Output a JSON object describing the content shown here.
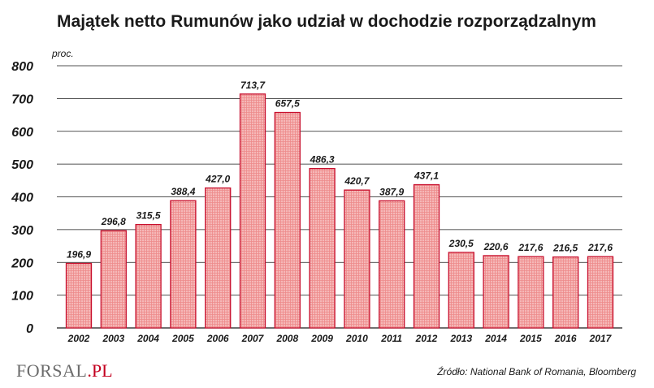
{
  "logo": {
    "brand_main": "FORSAL",
    "brand_suffix": ".PL"
  },
  "source": "Źródło: National Bank of Romania, Bloomberg",
  "colors": {
    "bar_fill": "#f5b8b8",
    "bar_stroke": "#c8102e",
    "bar_pattern": "#ee8a8a",
    "grid": "#1a1a1a",
    "text": "#1a1a1a",
    "logo_gray": "#6b6b6b",
    "logo_red": "#c3001f"
  },
  "chart_data": {
    "type": "bar",
    "title": "Majątek netto Rumunów  jako udział w dochodzie rozporządzalnym",
    "unit_label": "proc.",
    "xlabel": "",
    "ylabel": "",
    "ylim": [
      0,
      800
    ],
    "yticks": [
      0,
      100,
      200,
      300,
      400,
      500,
      600,
      700,
      800
    ],
    "ytick_labels": [
      "0",
      "100",
      "200",
      "300",
      "400",
      "500",
      "600",
      "700",
      "800"
    ],
    "grid": true,
    "categories": [
      "2002",
      "2003",
      "2004",
      "2005",
      "2006",
      "2007",
      "2008",
      "2009",
      "2010",
      "2011",
      "2012",
      "2013",
      "2014",
      "2015",
      "2016",
      "2017"
    ],
    "values": [
      196.9,
      296.8,
      315.5,
      388.4,
      427.0,
      713.7,
      657.5,
      486.3,
      420.7,
      387.9,
      437.1,
      230.5,
      220.6,
      217.6,
      216.5,
      217.6
    ],
    "value_labels": [
      "196,9",
      "296,8",
      "315,5",
      "388,4",
      "427,0",
      "713,7",
      "657,5",
      "486,3",
      "420,7",
      "387,9",
      "437,1",
      "230,5",
      "220,6",
      "217,6",
      "216,5",
      "217,6"
    ]
  }
}
